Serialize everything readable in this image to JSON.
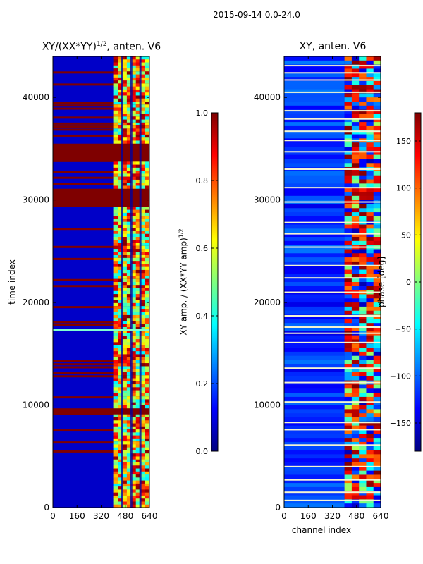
{
  "figure": {
    "suptitle": "2015-09-14 0.0-24.0"
  },
  "colors": {
    "jet": [
      "#00007f",
      "#0000ff",
      "#007fff",
      "#00ffff",
      "#7fff7f",
      "#ffff00",
      "#ff7f00",
      "#ff0000",
      "#7f0000"
    ],
    "white_line": "#f4f4d0"
  },
  "chart_data": [
    {
      "type": "heatmap",
      "title_main": "XY/(XX*YY)",
      "title_sup": "1/2",
      "title_rest": ", anten. V6",
      "xlabel": "",
      "ylabel": "time index",
      "xlim": [
        0,
        640
      ],
      "ylim": [
        0,
        44000
      ],
      "xticks": [
        0,
        160,
        320,
        480,
        640
      ],
      "yticks": [
        0,
        10000,
        20000,
        30000,
        40000
      ],
      "active_channels": [
        400,
        640
      ],
      "saturated_bands": [
        [
          29300,
          31200
        ],
        [
          33800,
          35400
        ],
        [
          9000,
          9600
        ]
      ],
      "white_lines": [
        17300
      ],
      "colorbar": {
        "label_main": "XY amp. / (XX*YY amp)",
        "label_sup": "1/2",
        "vmin": 0.0,
        "vmax": 1.0,
        "ticks": [
          0.0,
          0.2,
          0.4,
          0.6,
          0.8,
          1.0
        ],
        "tick_labels": [
          "0.0",
          "0.2",
          "0.4",
          "0.6",
          "0.8",
          "1.0"
        ]
      }
    },
    {
      "type": "heatmap",
      "title": "XY, anten. V6",
      "xlabel": "channel index",
      "ylabel": "",
      "xlim": [
        0,
        640
      ],
      "ylim": [
        0,
        44000
      ],
      "xticks": [
        0,
        160,
        320,
        480,
        640
      ],
      "yticks": [
        0,
        10000,
        20000,
        30000,
        40000
      ],
      "active_channels": [
        400,
        640
      ],
      "white_lines": [
        700,
        1500,
        2700,
        4000,
        6100,
        7600,
        8300,
        10300,
        12200,
        13600,
        16100,
        17000,
        17600,
        18700,
        21000,
        22400,
        23600,
        25400,
        26700,
        27800,
        29800,
        31200,
        33000,
        34700,
        35800,
        36700,
        37900,
        38700,
        40500,
        41700,
        42400,
        43100
      ],
      "colorbar": {
        "label": "phase [deg]",
        "vmin": -180,
        "vmax": 180,
        "ticks": [
          -150,
          -100,
          -50,
          0,
          50,
          100,
          150
        ],
        "tick_labels": [
          "−150",
          "−100",
          "−50",
          "0",
          "50",
          "100",
          "150"
        ]
      }
    }
  ]
}
